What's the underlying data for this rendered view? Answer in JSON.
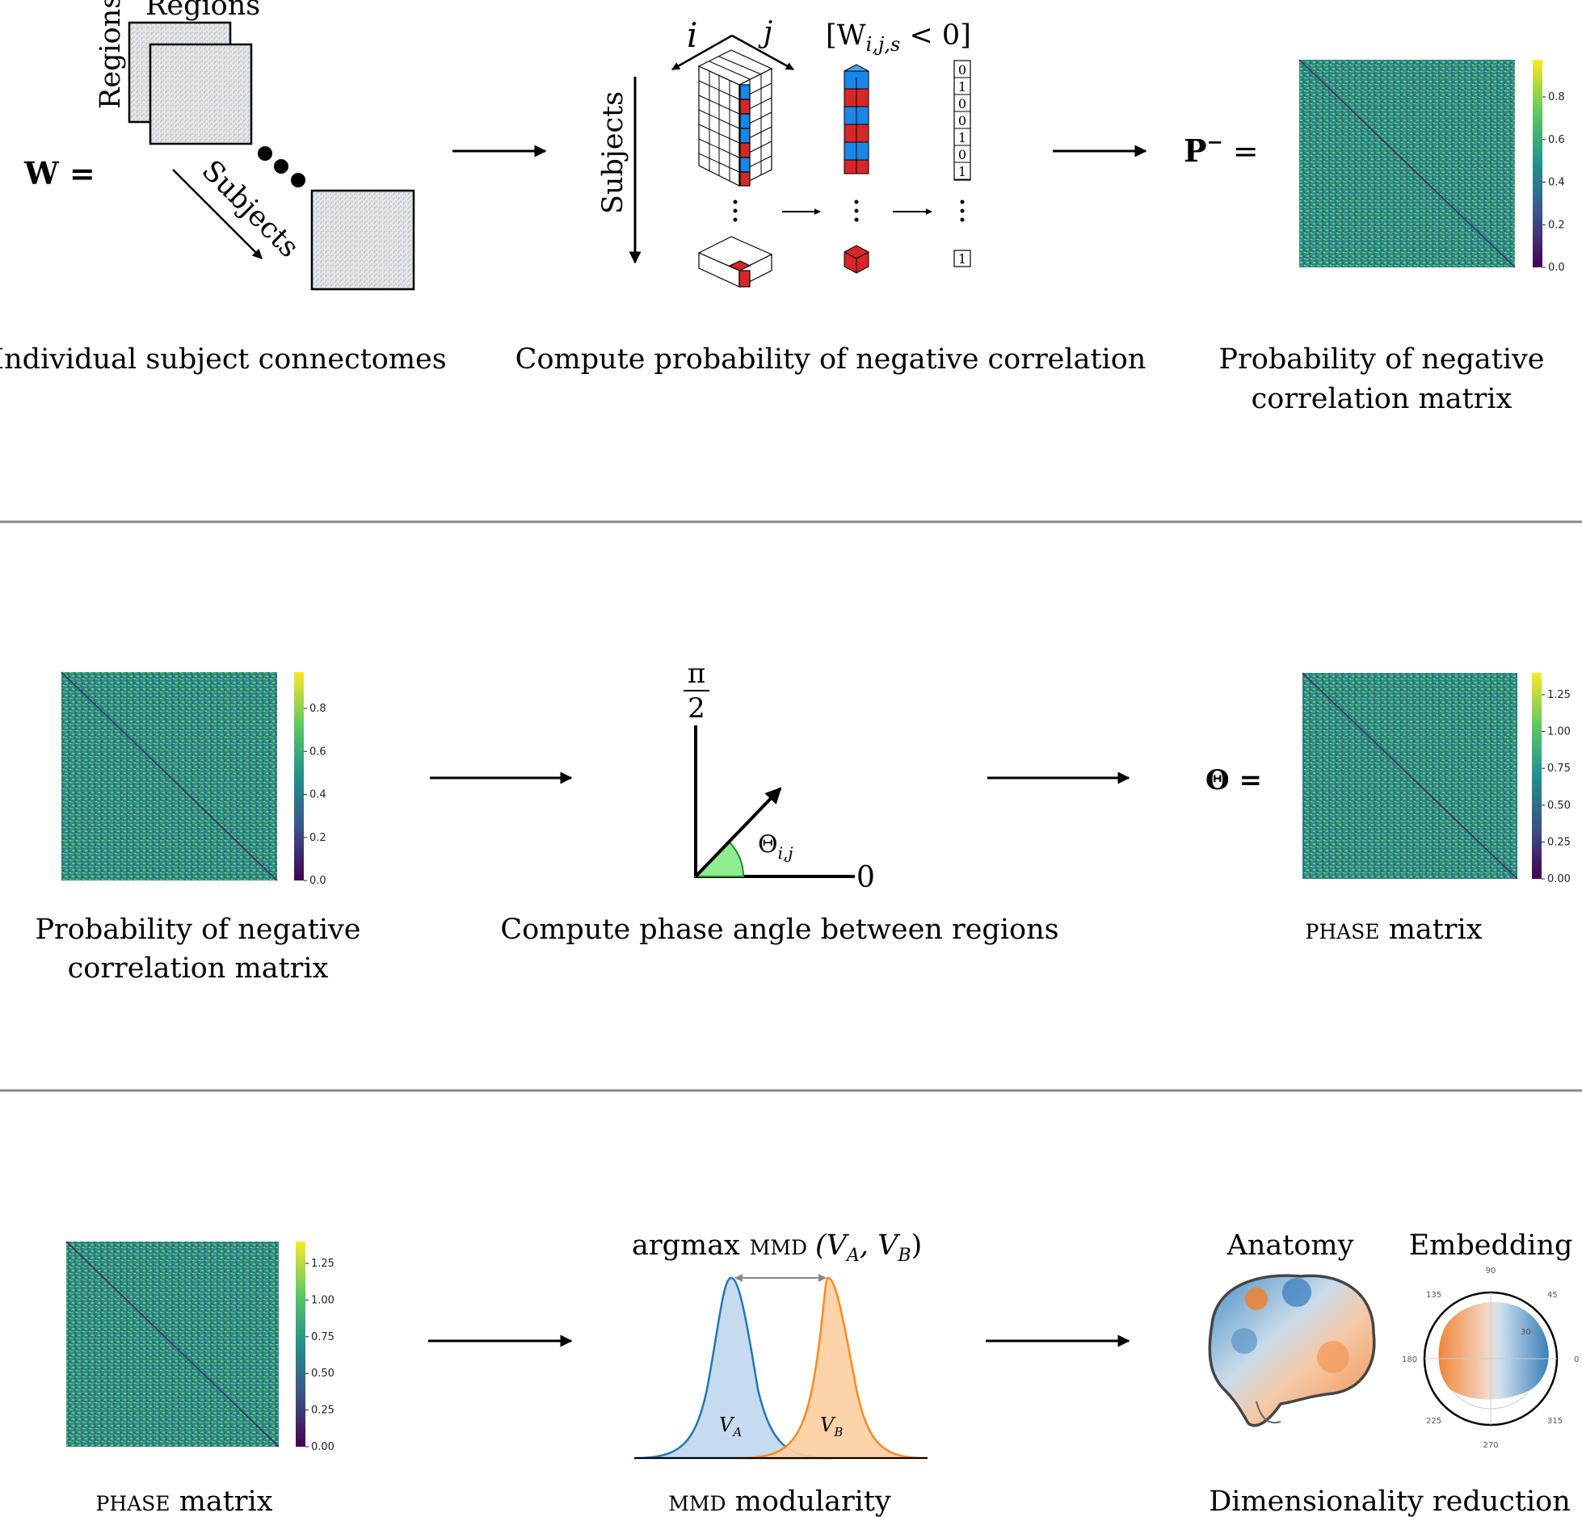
{
  "row1": {
    "w_label": "W =",
    "regions_top": "Regions",
    "regions_side": "Regions",
    "subjects_diag": "Subjects",
    "subjects_vert": "Subjects",
    "idx_i": "i",
    "idx_j": "j",
    "indicator": "[W",
    "indicator_sub": "i,j,s",
    "indicator_tail": " < 0]",
    "bits": [
      "0",
      "1",
      "0",
      "0",
      "1",
      "0",
      "1"
    ],
    "bit_last": "1",
    "p_label": "P",
    "p_sup": "−",
    "p_eq": " =",
    "caption1": "Individual subject connectomes",
    "caption2": "Compute probability of negative correlation",
    "caption3_line1": "Probability of negative",
    "caption3_line2": "correlation matrix",
    "colorbar_ticks": [
      "0.8",
      "0.6",
      "0.4",
      "0.2",
      "0.0"
    ]
  },
  "row2": {
    "caption1_line1": "Probability of negative",
    "caption1_line2": "correlation matrix",
    "colorbar1_ticks": [
      "0.8",
      "0.6",
      "0.4",
      "0.2",
      "0.0"
    ],
    "pi_num": "π",
    "pi_den": "2",
    "zero": "0",
    "theta_label": "Θ",
    "theta_sub": "i,j",
    "caption2": "Compute phase angle between regions",
    "theta_eq_label": "Θ =",
    "caption3_sc": "phase",
    "caption3_rest": " matrix",
    "colorbar3_ticks": [
      "1.25",
      "1.00",
      "0.75",
      "0.50",
      "0.25",
      "0.00"
    ]
  },
  "row3": {
    "caption1_sc": "phase",
    "caption1_rest": " matrix",
    "colorbar1_ticks": [
      "1.25",
      "1.00",
      "0.75",
      "0.50",
      "0.25",
      "0.00"
    ],
    "argmax": "argmax",
    "mmd_sc": "mmd",
    "argmax_args": "(V",
    "sub_a": "A",
    "comma": ", V",
    "sub_b": "B",
    "close": ")",
    "va": "V",
    "vb": "V",
    "caption2_sc": "mmd",
    "caption2_rest": " modularity",
    "anatomy": "Anatomy",
    "embedding": "Embedding",
    "polar_ticks": [
      "90",
      "45",
      "0",
      "315",
      "270",
      "225",
      "180",
      "135",
      "30"
    ],
    "caption3": "Dimensionality reduction"
  },
  "colors": {
    "blue": "#1f77b4",
    "orange": "#ff7f0e",
    "cube_blue": "#1a86e6",
    "cube_red": "#d62728",
    "angle_fill": "#90ee90",
    "divider": "#888888"
  }
}
